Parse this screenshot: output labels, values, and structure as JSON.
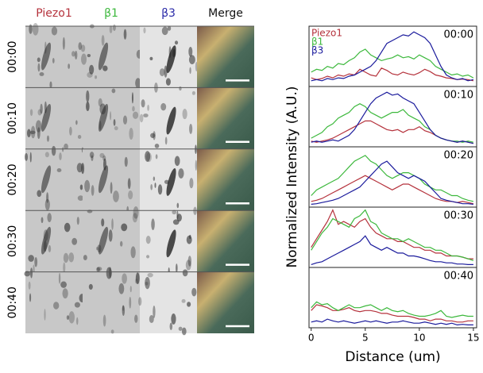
{
  "image_panel": {
    "columns": [
      {
        "label": "Piezo1",
        "color": "#b5323c"
      },
      {
        "label": "β1",
        "color": "#3cb83c"
      },
      {
        "label": "β3",
        "color": "#2a2aa8"
      },
      {
        "label": "Merge",
        "color": "#111111"
      }
    ],
    "rows": [
      "00:00",
      "00:10",
      "00:20",
      "00:30",
      "00:40"
    ]
  },
  "y_label": "Normalized Intensity (A.U.)",
  "chart_data": [
    {
      "type": "line",
      "title": "00:00",
      "xlim": [
        -0.2,
        15.3
      ],
      "ylim": [
        0,
        1.05
      ],
      "legend": "upper left",
      "x": [
        0,
        0.5,
        1,
        1.5,
        2,
        2.5,
        3,
        3.5,
        4,
        4.5,
        5,
        5.5,
        6,
        6.5,
        7,
        7.5,
        8,
        8.5,
        9,
        9.5,
        10,
        10.5,
        11,
        11.5,
        12,
        12.5,
        13,
        13.5,
        14,
        14.5,
        15
      ],
      "series": [
        {
          "name": "Piezo1",
          "color": "#b5323c",
          "values": [
            0.15,
            0.12,
            0.14,
            0.18,
            0.15,
            0.2,
            0.18,
            0.22,
            0.2,
            0.3,
            0.25,
            0.2,
            0.18,
            0.32,
            0.28,
            0.22,
            0.2,
            0.25,
            0.22,
            0.2,
            0.24,
            0.3,
            0.26,
            0.2,
            0.18,
            0.15,
            0.14,
            0.12,
            0.13,
            0.12,
            0.1
          ]
        },
        {
          "name": "β1",
          "color": "#3cb83c",
          "values": [
            0.25,
            0.3,
            0.28,
            0.35,
            0.32,
            0.4,
            0.38,
            0.45,
            0.5,
            0.6,
            0.65,
            0.55,
            0.5,
            0.45,
            0.48,
            0.5,
            0.55,
            0.5,
            0.52,
            0.48,
            0.55,
            0.5,
            0.45,
            0.35,
            0.3,
            0.25,
            0.2,
            0.22,
            0.18,
            0.2,
            0.15
          ]
        },
        {
          "name": "β3",
          "color": "#1a1a9c",
          "values": [
            0.1,
            0.12,
            0.1,
            0.14,
            0.12,
            0.15,
            0.14,
            0.18,
            0.2,
            0.25,
            0.3,
            0.35,
            0.45,
            0.6,
            0.75,
            0.8,
            0.85,
            0.9,
            0.88,
            0.95,
            0.9,
            0.85,
            0.75,
            0.55,
            0.35,
            0.2,
            0.15,
            0.12,
            0.14,
            0.1,
            0.12
          ]
        }
      ]
    },
    {
      "type": "line",
      "title": "00:10",
      "xlim": [
        -0.2,
        15.3
      ],
      "ylim": [
        0,
        1.05
      ],
      "x": [
        0,
        0.5,
        1,
        1.5,
        2,
        2.5,
        3,
        3.5,
        4,
        4.5,
        5,
        5.5,
        6,
        6.5,
        7,
        7.5,
        8,
        8.5,
        9,
        9.5,
        10,
        10.5,
        11,
        11.5,
        12,
        12.5,
        13,
        13.5,
        14,
        14.5,
        15
      ],
      "series": [
        {
          "color": "#b5323c",
          "values": [
            0.1,
            0.08,
            0.1,
            0.12,
            0.15,
            0.2,
            0.25,
            0.3,
            0.35,
            0.4,
            0.45,
            0.45,
            0.4,
            0.35,
            0.3,
            0.28,
            0.3,
            0.25,
            0.3,
            0.3,
            0.35,
            0.28,
            0.25,
            0.2,
            0.15,
            0.12,
            0.1,
            0.08,
            0.1,
            0.08,
            0.06
          ]
        },
        {
          "color": "#3cb83c",
          "values": [
            0.15,
            0.2,
            0.25,
            0.35,
            0.4,
            0.5,
            0.55,
            0.6,
            0.7,
            0.75,
            0.7,
            0.6,
            0.55,
            0.5,
            0.55,
            0.6,
            0.6,
            0.65,
            0.55,
            0.5,
            0.45,
            0.35,
            0.3,
            0.2,
            0.15,
            0.12,
            0.1,
            0.1,
            0.08,
            0.1,
            0.08
          ]
        },
        {
          "color": "#1a1a9c",
          "values": [
            0.08,
            0.1,
            0.08,
            0.1,
            0.12,
            0.1,
            0.15,
            0.2,
            0.3,
            0.45,
            0.6,
            0.75,
            0.85,
            0.9,
            0.95,
            0.9,
            0.92,
            0.85,
            0.8,
            0.75,
            0.6,
            0.45,
            0.3,
            0.2,
            0.15,
            0.12,
            0.1,
            0.08,
            0.1,
            0.08,
            0.06
          ]
        }
      ]
    },
    {
      "type": "line",
      "title": "00:20",
      "xlim": [
        -0.2,
        15.3
      ],
      "ylim": [
        0,
        1.05
      ],
      "x": [
        0,
        0.5,
        1,
        1.5,
        2,
        2.5,
        3,
        3.5,
        4,
        4.5,
        5,
        5.5,
        6,
        6.5,
        7,
        7.5,
        8,
        8.5,
        9,
        9.5,
        10,
        10.5,
        11,
        11.5,
        12,
        12.5,
        13,
        13.5,
        14,
        14.5,
        15
      ],
      "series": [
        {
          "color": "#b5323c",
          "values": [
            0.1,
            0.12,
            0.15,
            0.2,
            0.25,
            0.3,
            0.35,
            0.4,
            0.45,
            0.5,
            0.55,
            0.5,
            0.45,
            0.4,
            0.35,
            0.3,
            0.35,
            0.4,
            0.4,
            0.35,
            0.3,
            0.25,
            0.2,
            0.15,
            0.12,
            0.1,
            0.1,
            0.08,
            0.1,
            0.08,
            0.06
          ]
        },
        {
          "color": "#3cb83c",
          "values": [
            0.2,
            0.3,
            0.35,
            0.4,
            0.45,
            0.5,
            0.6,
            0.7,
            0.8,
            0.85,
            0.9,
            0.8,
            0.75,
            0.65,
            0.55,
            0.5,
            0.55,
            0.6,
            0.6,
            0.55,
            0.5,
            0.4,
            0.35,
            0.3,
            0.3,
            0.25,
            0.2,
            0.2,
            0.15,
            0.12,
            0.1
          ]
        },
        {
          "color": "#1a1a9c",
          "values": [
            0.05,
            0.06,
            0.08,
            0.1,
            0.12,
            0.15,
            0.2,
            0.25,
            0.3,
            0.35,
            0.45,
            0.55,
            0.65,
            0.75,
            0.8,
            0.7,
            0.6,
            0.55,
            0.5,
            0.55,
            0.5,
            0.45,
            0.35,
            0.25,
            0.15,
            0.12,
            0.1,
            0.08,
            0.06,
            0.06,
            0.05
          ]
        }
      ]
    },
    {
      "type": "line",
      "title": "00:30",
      "xlim": [
        -0.2,
        15.3
      ],
      "ylim": [
        0,
        1.05
      ],
      "x": [
        0,
        0.5,
        1,
        1.5,
        2,
        2.5,
        3,
        3.5,
        4,
        4.5,
        5,
        5.5,
        6,
        6.5,
        7,
        7.5,
        8,
        8.5,
        9,
        9.5,
        10,
        10.5,
        11,
        11.5,
        12,
        12.5,
        13,
        13.5,
        14,
        14.5,
        15
      ],
      "series": [
        {
          "color": "#b5323c",
          "values": [
            0.35,
            0.5,
            0.65,
            0.8,
            1.0,
            0.75,
            0.8,
            0.75,
            0.7,
            0.8,
            0.85,
            0.7,
            0.6,
            0.55,
            0.5,
            0.5,
            0.45,
            0.45,
            0.4,
            0.35,
            0.35,
            0.3,
            0.3,
            0.25,
            0.25,
            0.2,
            0.2,
            0.2,
            0.18,
            0.15,
            0.15
          ]
        },
        {
          "color": "#3cb83c",
          "values": [
            0.3,
            0.45,
            0.6,
            0.7,
            0.85,
            0.8,
            0.75,
            0.7,
            0.85,
            0.9,
            1.0,
            0.8,
            0.75,
            0.6,
            0.55,
            0.5,
            0.5,
            0.45,
            0.5,
            0.45,
            0.4,
            0.35,
            0.35,
            0.3,
            0.3,
            0.25,
            0.2,
            0.2,
            0.18,
            0.15,
            0.12
          ]
        },
        {
          "color": "#1a1a9c",
          "values": [
            0.05,
            0.08,
            0.1,
            0.15,
            0.2,
            0.25,
            0.3,
            0.35,
            0.4,
            0.45,
            0.55,
            0.4,
            0.35,
            0.3,
            0.35,
            0.3,
            0.25,
            0.25,
            0.2,
            0.2,
            0.18,
            0.15,
            0.12,
            0.1,
            0.1,
            0.08,
            0.08,
            0.06,
            0.06,
            0.05,
            0.05
          ]
        }
      ]
    },
    {
      "type": "line",
      "title": "00:40",
      "xlim": [
        -0.2,
        15.3
      ],
      "ylim": [
        0,
        1.05
      ],
      "xticks": [
        0,
        5,
        10,
        15
      ],
      "x_label": "Distance (um)",
      "x": [
        0,
        0.5,
        1,
        1.5,
        2,
        2.5,
        3,
        3.5,
        4,
        4.5,
        5,
        5.5,
        6,
        6.5,
        7,
        7.5,
        8,
        8.5,
        9,
        9.5,
        10,
        10.5,
        11,
        11.5,
        12,
        12.5,
        13,
        13.5,
        14,
        14.5,
        15
      ],
      "series": [
        {
          "color": "#b5323c",
          "values": [
            0.3,
            0.4,
            0.38,
            0.35,
            0.3,
            0.3,
            0.32,
            0.35,
            0.3,
            0.28,
            0.3,
            0.3,
            0.28,
            0.25,
            0.25,
            0.22,
            0.2,
            0.2,
            0.2,
            0.18,
            0.15,
            0.15,
            0.12,
            0.15,
            0.15,
            0.12,
            0.12,
            0.1,
            0.1,
            0.12,
            0.12
          ]
        },
        {
          "color": "#3cb83c",
          "values": [
            0.35,
            0.45,
            0.4,
            0.42,
            0.35,
            0.3,
            0.35,
            0.4,
            0.35,
            0.35,
            0.38,
            0.4,
            0.35,
            0.3,
            0.35,
            0.3,
            0.28,
            0.3,
            0.25,
            0.22,
            0.2,
            0.2,
            0.22,
            0.25,
            0.3,
            0.2,
            0.18,
            0.2,
            0.22,
            0.2,
            0.2
          ]
        },
        {
          "color": "#1a1a9c",
          "values": [
            0.1,
            0.12,
            0.1,
            0.15,
            0.12,
            0.1,
            0.12,
            0.1,
            0.08,
            0.1,
            0.12,
            0.1,
            0.12,
            0.1,
            0.08,
            0.1,
            0.1,
            0.12,
            0.1,
            0.08,
            0.08,
            0.1,
            0.08,
            0.06,
            0.08,
            0.06,
            0.08,
            0.05,
            0.06,
            0.05,
            0.05
          ]
        }
      ]
    }
  ]
}
